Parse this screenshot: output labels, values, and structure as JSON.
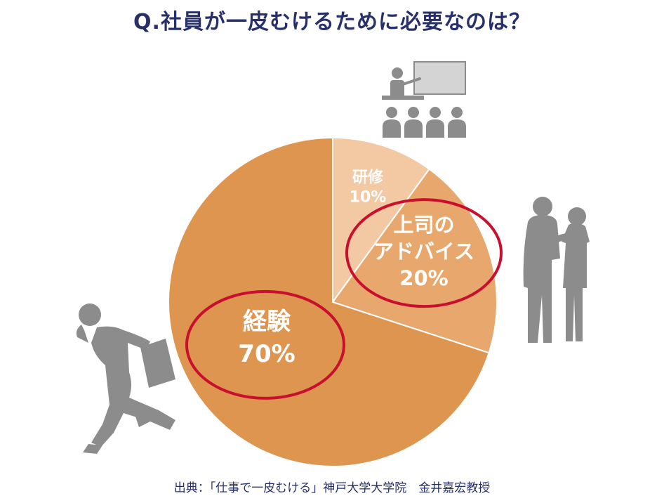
{
  "title": "Q.社員が一皮むけるために必要なのは？",
  "source": "出典：「仕事で一皮むける」神戸大学大学院　金井嘉宏教授",
  "colors": {
    "title": "#27306b",
    "highlight_ring": "#c8102e",
    "silhouette": "#8c8c8c"
  },
  "icons": {
    "training": "lecture-icon",
    "advice": "conversation-silhouette",
    "experience": "running-businessman-silhouette"
  },
  "chart_data": {
    "type": "pie",
    "title": "Q.社員が一皮むけるために必要なのは？",
    "start_angle_deg": 0,
    "direction": "clockwise",
    "slices": [
      {
        "name": "研修",
        "label_lines": [
          "研修"
        ],
        "value": 10,
        "value_label": "10%",
        "color": "#f2c9a3",
        "highlighted": false
      },
      {
        "name": "上司のアドバイス",
        "label_lines": [
          "上司の",
          "アドバイス"
        ],
        "value": 20,
        "value_label": "20%",
        "color": "#e8a76c",
        "highlighted": true
      },
      {
        "name": "経験",
        "label_lines": [
          "経験"
        ],
        "value": 70,
        "value_label": "70%",
        "color": "#de954f",
        "highlighted": true
      }
    ]
  }
}
